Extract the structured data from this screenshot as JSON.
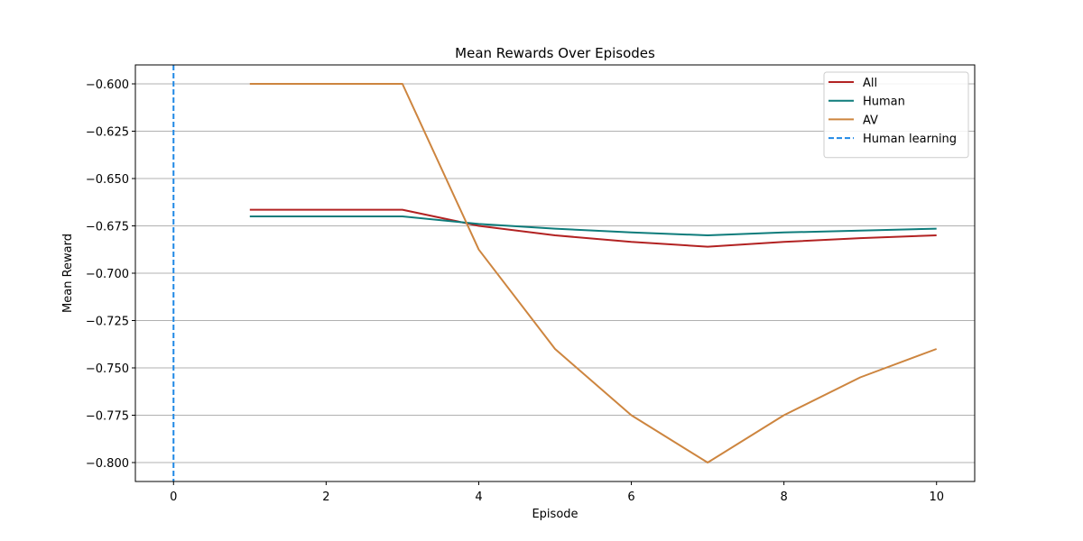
{
  "chart_data": {
    "type": "line",
    "title": "Mean Rewards Over Episodes",
    "xlabel": "Episode",
    "ylabel": "Mean Reward",
    "xlim": [
      -0.5,
      10.5
    ],
    "ylim": [
      -0.81,
      -0.59
    ],
    "xticks": [
      0,
      2,
      4,
      6,
      8,
      10
    ],
    "yticks": [
      -0.8,
      -0.775,
      -0.75,
      -0.725,
      -0.7,
      -0.675,
      -0.65,
      -0.625,
      -0.6
    ],
    "ytick_labels": [
      "−0.800",
      "−0.775",
      "−0.750",
      "−0.725",
      "−0.700",
      "−0.675",
      "−0.650",
      "−0.625",
      "−0.600"
    ],
    "xtick_labels": [
      "0",
      "2",
      "4",
      "6",
      "8",
      "10"
    ],
    "grid": "horizontal",
    "legend_position": "top-right",
    "series": [
      {
        "name": "All",
        "color": "#b22222",
        "x": [
          1,
          2,
          3,
          4,
          5,
          6,
          7,
          8,
          9,
          10
        ],
        "y": [
          -0.6665,
          -0.6665,
          -0.6665,
          -0.675,
          -0.68,
          -0.6835,
          -0.686,
          -0.6835,
          -0.6815,
          -0.68
        ]
      },
      {
        "name": "Human",
        "color": "#0e7c7b",
        "x": [
          1,
          2,
          3,
          4,
          5,
          6,
          7,
          8,
          9,
          10
        ],
        "y": [
          -0.67,
          -0.67,
          -0.67,
          -0.674,
          -0.6765,
          -0.6785,
          -0.68,
          -0.6785,
          -0.6775,
          -0.6765
        ]
      },
      {
        "name": "AV",
        "color": "#cd853f",
        "x": [
          1,
          2,
          3,
          4,
          5,
          6,
          7,
          8,
          9,
          10
        ],
        "y": [
          -0.6,
          -0.6,
          -0.6,
          -0.6875,
          -0.74,
          -0.775,
          -0.8,
          -0.775,
          -0.755,
          -0.74
        ]
      }
    ],
    "vlines": [
      {
        "name": "Human learning",
        "x": 0,
        "color": "#1e88e5",
        "style": "dashed"
      }
    ]
  }
}
